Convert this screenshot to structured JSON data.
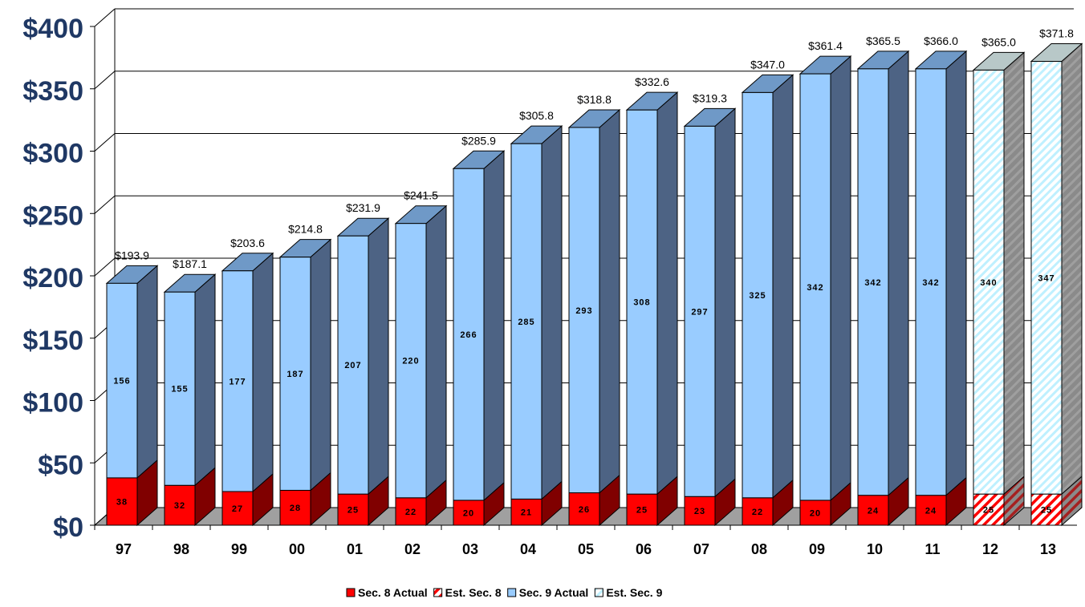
{
  "chart_data": {
    "type": "bar",
    "stacked": true,
    "three_d": true,
    "categories": [
      "97",
      "98",
      "99",
      "00",
      "01",
      "02",
      "03",
      "04",
      "05",
      "06",
      "07",
      "08",
      "09",
      "10",
      "11",
      "12",
      "13"
    ],
    "ylim": [
      0,
      400
    ],
    "y_ticks": [
      "$0",
      "$50",
      "$100",
      "$150",
      "$200",
      "$250",
      "$300",
      "$350",
      "$400"
    ],
    "grid": true,
    "legend_position": "bottom",
    "series": [
      {
        "name": "Sec. 8 Actual",
        "values": [
          38,
          32,
          27,
          28,
          25,
          22,
          20,
          21,
          26,
          25,
          23,
          22,
          20,
          24,
          24,
          null,
          null
        ],
        "color": "#ff0000"
      },
      {
        "name": "Est. Sec. 8",
        "values": [
          null,
          null,
          null,
          null,
          null,
          null,
          null,
          null,
          null,
          null,
          null,
          null,
          null,
          null,
          null,
          25,
          25
        ],
        "color": "#ff0000",
        "pattern": "diagonal-hatch"
      },
      {
        "name": "Sec. 9 Actual",
        "values": [
          156,
          155,
          177,
          187,
          207,
          220,
          266,
          285,
          293,
          308,
          297,
          325,
          342,
          342,
          342,
          null,
          null
        ],
        "color": "#99ccff"
      },
      {
        "name": "Est. Sec. 9",
        "values": [
          null,
          null,
          null,
          null,
          null,
          null,
          null,
          null,
          null,
          null,
          null,
          null,
          null,
          null,
          null,
          340,
          347
        ],
        "color": "#ccffff",
        "pattern": "diagonal-hatch"
      }
    ],
    "totals": [
      "$193.9",
      "$187.1",
      "$203.6",
      "$214.8",
      "$231.9",
      "$241.5",
      "$285.9",
      "$305.8",
      "$318.8",
      "$332.6",
      "$319.3",
      "$347.0",
      "$361.4",
      "$365.5",
      "$366.0",
      "$365.0",
      "$371.8"
    ],
    "sec8_labels": [
      "38",
      "32",
      "27",
      "28",
      "25",
      "22",
      "20",
      "21",
      "26",
      "25",
      "23",
      "22",
      "20",
      "24",
      "24",
      "25",
      "25"
    ],
    "sec9_labels": [
      "156",
      "155",
      "177",
      "187",
      "207",
      "220",
      "266",
      "285",
      "293",
      "308",
      "297",
      "325",
      "342",
      "342",
      "342",
      "340",
      "347"
    ],
    "colors": {
      "axis_label": "#1f3864",
      "sec8_front": "#ff0000",
      "sec8_side": "#800000",
      "sec8_top": "#cc3333",
      "sec9_front": "#99ccff",
      "sec9_side": "#4d6384",
      "sec9_top": "#6f99c7",
      "est_front": "#ffffff",
      "est_side": "#808080",
      "est_top": "#b8c8c8",
      "floor": "#a0a0a0"
    }
  }
}
